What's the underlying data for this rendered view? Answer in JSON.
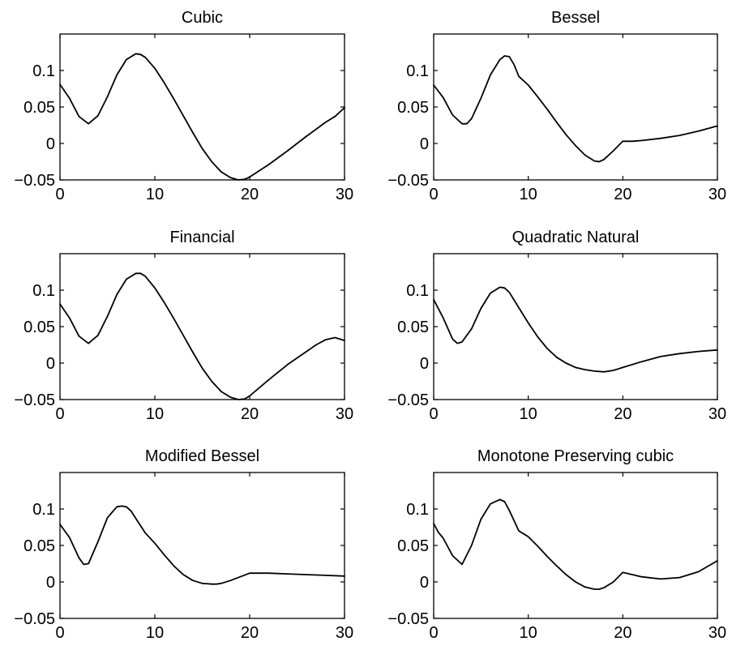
{
  "chart_data": [
    {
      "type": "line",
      "title": "Cubic",
      "xlim": [
        0,
        30
      ],
      "ylim": [
        -0.05,
        0.15
      ],
      "xticks": [
        0,
        10,
        20,
        30
      ],
      "xtick_labels": [
        "0",
        "10",
        "20",
        "30"
      ],
      "yticks": [
        -0.05,
        0,
        0.05,
        0.1
      ],
      "ytick_labels": [
        "−0.05",
        "0",
        "0.05",
        "0.1"
      ],
      "series": [
        {
          "x": [
            0,
            1,
            2,
            3,
            4,
            5,
            6,
            7,
            8,
            8.5,
            9,
            10,
            11,
            12,
            13,
            14,
            15,
            16,
            17,
            18,
            18.8,
            19.5,
            20,
            22,
            24,
            26,
            28,
            29,
            30
          ],
          "y": [
            0.081,
            0.062,
            0.037,
            0.027,
            0.038,
            0.064,
            0.094,
            0.115,
            0.123,
            0.122,
            0.118,
            0.103,
            0.083,
            0.061,
            0.038,
            0.015,
            -0.007,
            -0.025,
            -0.039,
            -0.047,
            -0.05,
            -0.049,
            -0.046,
            -0.029,
            -0.01,
            0.01,
            0.029,
            0.037,
            0.049
          ]
        }
      ]
    },
    {
      "type": "line",
      "title": "Bessel",
      "xlim": [
        0,
        30
      ],
      "ylim": [
        -0.05,
        0.15
      ],
      "xticks": [
        0,
        10,
        20,
        30
      ],
      "xtick_labels": [
        "0",
        "10",
        "20",
        "30"
      ],
      "yticks": [
        -0.05,
        0,
        0.05,
        0.1
      ],
      "ytick_labels": [
        "−0.05",
        "0",
        "0.05",
        "0.1"
      ],
      "series": [
        {
          "x": [
            0,
            1,
            2,
            3,
            3.5,
            4,
            5,
            6,
            7,
            7.5,
            8,
            8.5,
            9,
            10,
            11,
            12,
            13,
            14,
            15,
            16,
            17,
            17.5,
            18,
            19,
            20,
            21,
            22,
            24,
            26,
            28,
            30
          ],
          "y": [
            0.08,
            0.063,
            0.039,
            0.027,
            0.027,
            0.034,
            0.062,
            0.094,
            0.115,
            0.12,
            0.119,
            0.108,
            0.092,
            0.08,
            0.064,
            0.047,
            0.029,
            0.012,
            -0.003,
            -0.016,
            -0.024,
            -0.025,
            -0.022,
            -0.01,
            0.003,
            0.003,
            0.004,
            0.007,
            0.011,
            0.017,
            0.024
          ]
        }
      ]
    },
    {
      "type": "line",
      "title": "Financial",
      "xlim": [
        0,
        30
      ],
      "ylim": [
        -0.05,
        0.15
      ],
      "xticks": [
        0,
        10,
        20,
        30
      ],
      "xtick_labels": [
        "0",
        "10",
        "20",
        "30"
      ],
      "yticks": [
        -0.05,
        0,
        0.05,
        0.1
      ],
      "ytick_labels": [
        "−0.05",
        "0",
        "0.05",
        "0.1"
      ],
      "series": [
        {
          "x": [
            0,
            1,
            2,
            3,
            4,
            5,
            6,
            7,
            8,
            8.5,
            9,
            10,
            11,
            12,
            13,
            14,
            15,
            16,
            17,
            18,
            18.8,
            19.5,
            20,
            22,
            24,
            26,
            27,
            28,
            29,
            30
          ],
          "y": [
            0.081,
            0.062,
            0.037,
            0.027,
            0.038,
            0.064,
            0.094,
            0.115,
            0.123,
            0.123,
            0.119,
            0.103,
            0.083,
            0.061,
            0.038,
            0.015,
            -0.007,
            -0.025,
            -0.039,
            -0.047,
            -0.05,
            -0.049,
            -0.045,
            -0.023,
            -0.002,
            0.016,
            0.025,
            0.032,
            0.035,
            0.031
          ]
        }
      ]
    },
    {
      "type": "line",
      "title": "Quadratic Natural",
      "xlim": [
        0,
        30
      ],
      "ylim": [
        -0.05,
        0.15
      ],
      "xticks": [
        0,
        10,
        20,
        30
      ],
      "xtick_labels": [
        "0",
        "10",
        "20",
        "30"
      ],
      "yticks": [
        -0.05,
        0,
        0.05,
        0.1
      ],
      "ytick_labels": [
        "−0.05",
        "0",
        "0.05",
        "0.1"
      ],
      "series": [
        {
          "x": [
            0,
            1,
            2,
            2.5,
            3,
            4,
            5,
            6,
            7,
            7.5,
            8,
            9,
            10,
            11,
            12,
            13,
            14,
            15,
            16,
            17,
            18,
            19,
            20,
            22,
            24,
            26,
            28,
            30
          ],
          "y": [
            0.087,
            0.062,
            0.033,
            0.027,
            0.029,
            0.047,
            0.075,
            0.096,
            0.104,
            0.103,
            0.097,
            0.076,
            0.055,
            0.036,
            0.02,
            0.008,
            0.0,
            -0.006,
            -0.009,
            -0.011,
            -0.012,
            -0.01,
            -0.006,
            0.002,
            0.009,
            0.013,
            0.016,
            0.018
          ]
        }
      ]
    },
    {
      "type": "line",
      "title": "Modified Bessel",
      "xlim": [
        0,
        30
      ],
      "ylim": [
        -0.05,
        0.15
      ],
      "xticks": [
        0,
        10,
        20,
        30
      ],
      "xtick_labels": [
        "0",
        "10",
        "20",
        "30"
      ],
      "yticks": [
        -0.05,
        0,
        0.05,
        0.1
      ],
      "ytick_labels": [
        "−0.05",
        "0",
        "0.05",
        "0.1"
      ],
      "series": [
        {
          "x": [
            0,
            0.5,
            1,
            2,
            2.5,
            3,
            4,
            5,
            6,
            6.5,
            7,
            7.5,
            8,
            9,
            10,
            11,
            12,
            13,
            14,
            15,
            16,
            16.5,
            17,
            18,
            19,
            20,
            22,
            24,
            26,
            28,
            30
          ],
          "y": [
            0.079,
            0.07,
            0.061,
            0.033,
            0.024,
            0.025,
            0.055,
            0.088,
            0.103,
            0.104,
            0.103,
            0.097,
            0.087,
            0.067,
            0.053,
            0.037,
            0.022,
            0.01,
            0.002,
            -0.002,
            -0.003,
            -0.003,
            -0.002,
            0.002,
            0.007,
            0.012,
            0.012,
            0.011,
            0.01,
            0.009,
            0.008
          ]
        }
      ]
    },
    {
      "type": "line",
      "title": "Monotone Preserving cubic",
      "xlim": [
        0,
        30
      ],
      "ylim": [
        -0.05,
        0.15
      ],
      "xticks": [
        0,
        10,
        20,
        30
      ],
      "xtick_labels": [
        "0",
        "10",
        "20",
        "30"
      ],
      "yticks": [
        -0.05,
        0,
        0.05,
        0.1
      ],
      "ytick_labels": [
        "−0.05",
        "0",
        "0.05",
        "0.1"
      ],
      "series": [
        {
          "x": [
            0,
            0.5,
            1,
            2,
            3,
            4,
            5,
            6,
            7,
            7.5,
            8,
            9,
            10,
            11,
            12,
            13,
            14,
            15,
            16,
            17,
            17.5,
            18,
            19,
            20,
            21,
            22,
            24,
            26,
            28,
            30
          ],
          "y": [
            0.08,
            0.068,
            0.06,
            0.036,
            0.024,
            0.05,
            0.086,
            0.107,
            0.113,
            0.11,
            0.098,
            0.07,
            0.062,
            0.049,
            0.035,
            0.022,
            0.01,
            0.0,
            -0.007,
            -0.01,
            -0.01,
            -0.008,
            0.0,
            0.013,
            0.01,
            0.007,
            0.004,
            0.006,
            0.014,
            0.029
          ]
        }
      ]
    }
  ]
}
